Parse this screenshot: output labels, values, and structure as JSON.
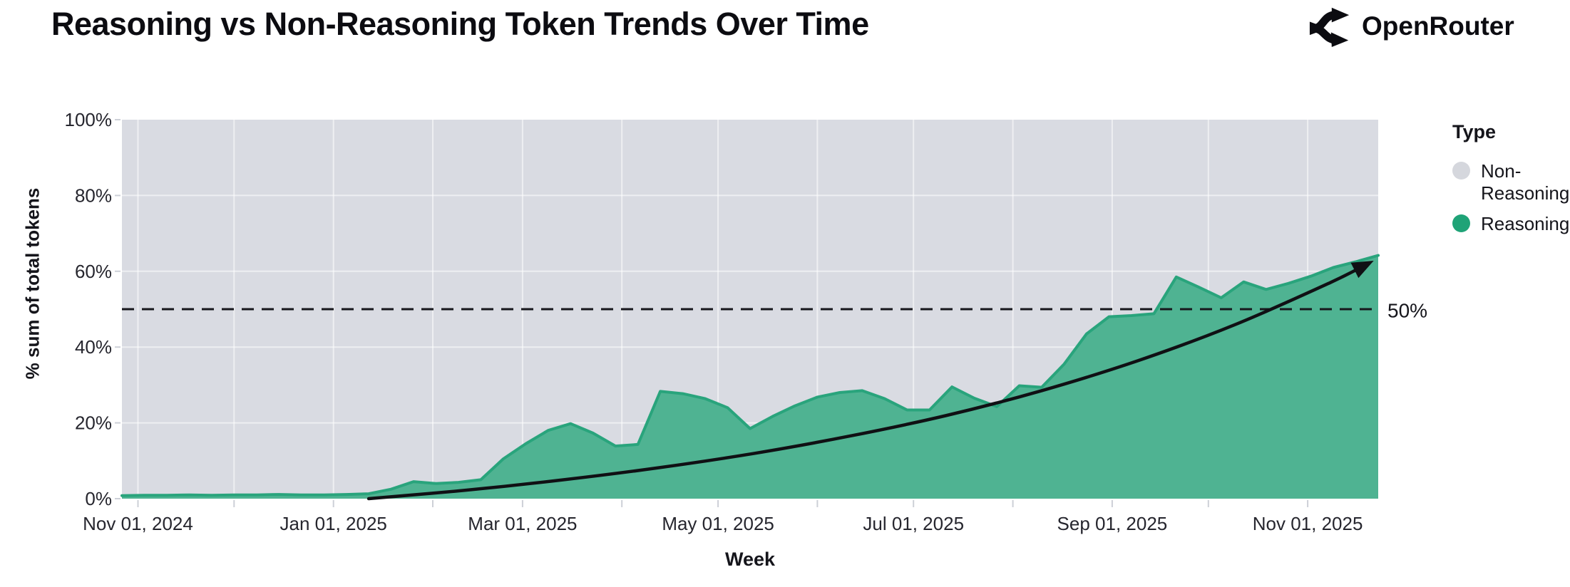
{
  "header": {
    "title": "Reasoning vs Non-Reasoning Token Trends Over Time",
    "brand": "OpenRouter"
  },
  "legend": {
    "title": "Type",
    "items": [
      {
        "label": "Non-Reasoning",
        "color": "#d5d7dd"
      },
      {
        "label": "Reasoning",
        "color": "#1fa377"
      }
    ]
  },
  "colors": {
    "background": "#ffffff",
    "non_reasoning_area": "#d9dbe2",
    "reasoning_area": "#4fb392",
    "reasoning_line": "#29a47c",
    "trend_line": "#101014",
    "reference_line": "#17171c",
    "grid_line": "rgba(255,255,255,0.55)",
    "tick_mark": "#cdd0d7",
    "text_tick": "#26262e"
  },
  "chart_data": {
    "type": "area",
    "variant": "100-percent-stacked-weekly",
    "title": "Reasoning vs Non-Reasoning Token Trends Over Time",
    "xlabel": "Week",
    "ylabel": "% sum of total tokens",
    "ylim": [
      0,
      100
    ],
    "legend_position": "right",
    "grid": true,
    "grid_y_values": [
      20,
      40,
      60,
      80
    ],
    "y_ticks": [
      {
        "value": 0,
        "label": "0%"
      },
      {
        "value": 20,
        "label": "20%"
      },
      {
        "value": 40,
        "label": "40%"
      },
      {
        "value": 60,
        "label": "60%"
      },
      {
        "value": 80,
        "label": "80%"
      },
      {
        "value": 100,
        "label": "100%"
      }
    ],
    "x_ticks": [
      {
        "date": "2024-11-01",
        "label": "Nov 01, 2024"
      },
      {
        "date": "2025-01-01",
        "label": "Jan 01, 2025"
      },
      {
        "date": "2025-03-01",
        "label": "Mar 01, 2025"
      },
      {
        "date": "2025-05-01",
        "label": "May 01, 2025"
      },
      {
        "date": "2025-07-01",
        "label": "Jul 01, 2025"
      },
      {
        "date": "2025-09-01",
        "label": "Sep 01, 2025"
      },
      {
        "date": "2025-11-01",
        "label": "Nov 01, 2025"
      }
    ],
    "x_minor_tick_dates": [
      "2024-11-01",
      "2024-12-01",
      "2025-01-01",
      "2025-02-01",
      "2025-03-01",
      "2025-04-01",
      "2025-05-01",
      "2025-06-01",
      "2025-07-01",
      "2025-08-01",
      "2025-09-01",
      "2025-10-01",
      "2025-11-01"
    ],
    "reference_line": {
      "value": 50,
      "label": "50%",
      "style": "dashed"
    },
    "series": [
      {
        "name": "Non-Reasoning",
        "role": "complement",
        "total": 100
      },
      {
        "name": "Reasoning",
        "points": [
          [
            "2024-10-27",
            0.8
          ],
          [
            "2024-11-03",
            0.9
          ],
          [
            "2024-11-10",
            0.9
          ],
          [
            "2024-11-17",
            1.0
          ],
          [
            "2024-11-24",
            0.9
          ],
          [
            "2024-12-01",
            1.0
          ],
          [
            "2024-12-08",
            1.0
          ],
          [
            "2024-12-15",
            1.1
          ],
          [
            "2024-12-22",
            1.0
          ],
          [
            "2024-12-29",
            1.0
          ],
          [
            "2025-01-05",
            1.1
          ],
          [
            "2025-01-12",
            1.3
          ],
          [
            "2025-01-19",
            2.5
          ],
          [
            "2025-01-26",
            4.5
          ],
          [
            "2025-02-02",
            4.0
          ],
          [
            "2025-02-09",
            4.3
          ],
          [
            "2025-02-16",
            5.0
          ],
          [
            "2025-02-23",
            10.5
          ],
          [
            "2025-03-02",
            14.5
          ],
          [
            "2025-03-09",
            18.0
          ],
          [
            "2025-03-16",
            19.8
          ],
          [
            "2025-03-23",
            17.3
          ],
          [
            "2025-03-30",
            13.9
          ],
          [
            "2025-04-06",
            14.3
          ],
          [
            "2025-04-13",
            28.3
          ],
          [
            "2025-04-20",
            27.7
          ],
          [
            "2025-04-27",
            26.4
          ],
          [
            "2025-05-04",
            24.0
          ],
          [
            "2025-05-11",
            18.5
          ],
          [
            "2025-05-18",
            21.7
          ],
          [
            "2025-05-25",
            24.5
          ],
          [
            "2025-06-01",
            26.8
          ],
          [
            "2025-06-08",
            28.0
          ],
          [
            "2025-06-15",
            28.5
          ],
          [
            "2025-06-22",
            26.4
          ],
          [
            "2025-06-29",
            23.4
          ],
          [
            "2025-07-06",
            23.4
          ],
          [
            "2025-07-13",
            29.5
          ],
          [
            "2025-07-20",
            26.5
          ],
          [
            "2025-07-27",
            24.3
          ],
          [
            "2025-08-03",
            29.8
          ],
          [
            "2025-08-10",
            29.4
          ],
          [
            "2025-08-17",
            35.5
          ],
          [
            "2025-08-24",
            43.5
          ],
          [
            "2025-08-31",
            48.0
          ],
          [
            "2025-09-07",
            48.3
          ],
          [
            "2025-09-14",
            48.8
          ],
          [
            "2025-09-21",
            58.5
          ],
          [
            "2025-09-28",
            55.8
          ],
          [
            "2025-10-05",
            53.0
          ],
          [
            "2025-10-12",
            57.2
          ],
          [
            "2025-10-19",
            55.2
          ],
          [
            "2025-10-26",
            56.8
          ],
          [
            "2025-11-02",
            58.7
          ],
          [
            "2025-11-09",
            61.0
          ],
          [
            "2025-11-16",
            62.5
          ],
          [
            "2025-11-23",
            64.2
          ]
        ]
      }
    ],
    "trend_arrow": {
      "description": "black curved growth arrow",
      "points": [
        [
          "2025-01-12",
          0
        ],
        [
          "2025-02-11",
          2.2
        ],
        [
          "2025-03-13",
          4.9
        ],
        [
          "2025-04-12",
          8.1
        ],
        [
          "2025-05-12",
          11.9
        ],
        [
          "2025-06-11",
          16.5
        ],
        [
          "2025-07-11",
          21.9
        ],
        [
          "2025-08-10",
          28.5
        ],
        [
          "2025-09-09",
          36.4
        ],
        [
          "2025-10-09",
          45.8
        ],
        [
          "2025-11-08",
          57.0
        ],
        [
          "2025-11-20",
          62.1
        ]
      ]
    }
  }
}
